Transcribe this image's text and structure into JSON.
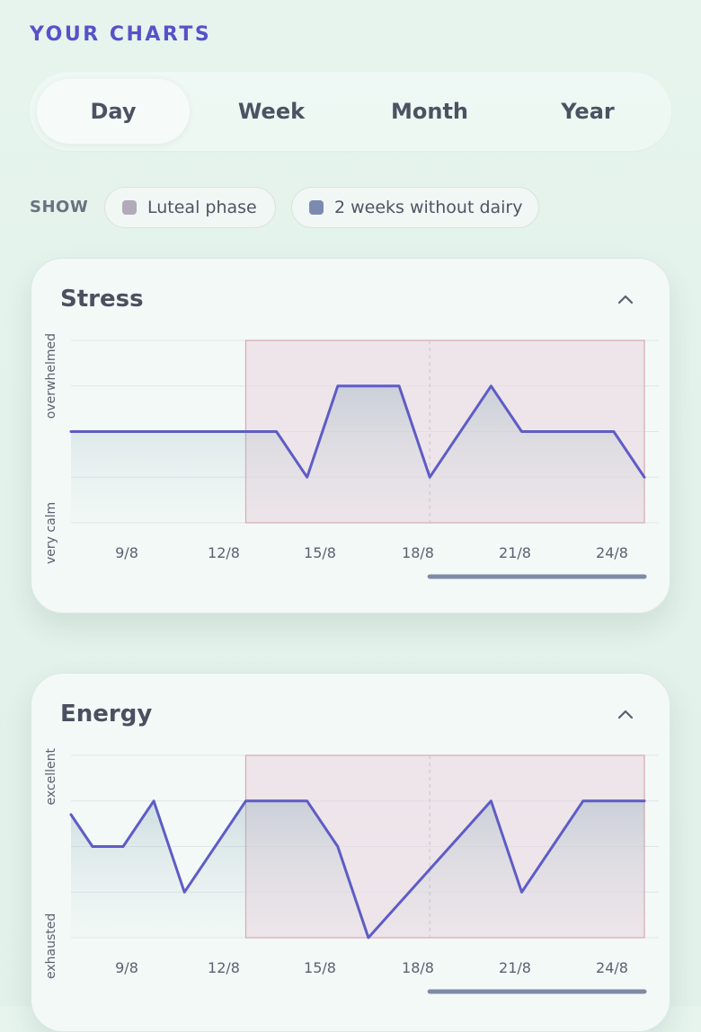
{
  "header": {
    "title": "YOUR CHARTS"
  },
  "tabs": [
    {
      "label": "Day",
      "active": true
    },
    {
      "label": "Week",
      "active": false
    },
    {
      "label": "Month",
      "active": false
    },
    {
      "label": "Year",
      "active": false
    }
  ],
  "show": {
    "label": "SHOW",
    "filters": [
      {
        "label": "Luteal phase",
        "color": "#b3a9ba"
      },
      {
        "label": "2 weeks without dairy",
        "color": "#7d8ab0"
      }
    ]
  },
  "colors": {
    "accent": "#5752c9",
    "line": "#5e5cc6",
    "luteal_fill": "#e9d6e0",
    "luteal_border": "#d8a8b4"
  },
  "chart_data": [
    {
      "type": "line",
      "title": "Stress",
      "y_top_label": "overwhelmed",
      "y_bottom_label": "very calm",
      "ylim": [
        0,
        4
      ],
      "x_ticks": [
        "9/8",
        "12/8",
        "15/8",
        "18/8",
        "21/8",
        "24/8"
      ],
      "x": [
        7.0,
        13.7,
        14.7,
        15.7,
        17.7,
        18.7,
        20.7,
        21.7,
        24.7,
        25.7
      ],
      "values": [
        2,
        2,
        1,
        3,
        3,
        1,
        3,
        2,
        2,
        1
      ],
      "x_range": [
        7.0,
        25.7
      ],
      "luteal_range": [
        12.7,
        25.7
      ],
      "divider_x": 18.7,
      "scroll_range": [
        18.7,
        25.7
      ]
    },
    {
      "type": "line",
      "title": "Energy",
      "y_top_label": "excellent",
      "y_bottom_label": "exhausted",
      "ylim": [
        0,
        4
      ],
      "x_ticks": [
        "9/8",
        "12/8",
        "15/8",
        "18/8",
        "21/8",
        "24/8"
      ],
      "x": [
        7.0,
        7.7,
        8.7,
        9.7,
        10.7,
        12.7,
        14.7,
        15.7,
        16.7,
        20.7,
        21.7,
        23.7,
        25.7
      ],
      "values": [
        2.7,
        2,
        2,
        3,
        1,
        3,
        3,
        2,
        0,
        3,
        1,
        3,
        3
      ],
      "x_range": [
        7.0,
        25.7
      ],
      "luteal_range": [
        12.7,
        25.7
      ],
      "divider_x": 18.7,
      "scroll_range": [
        18.7,
        25.7
      ]
    }
  ]
}
